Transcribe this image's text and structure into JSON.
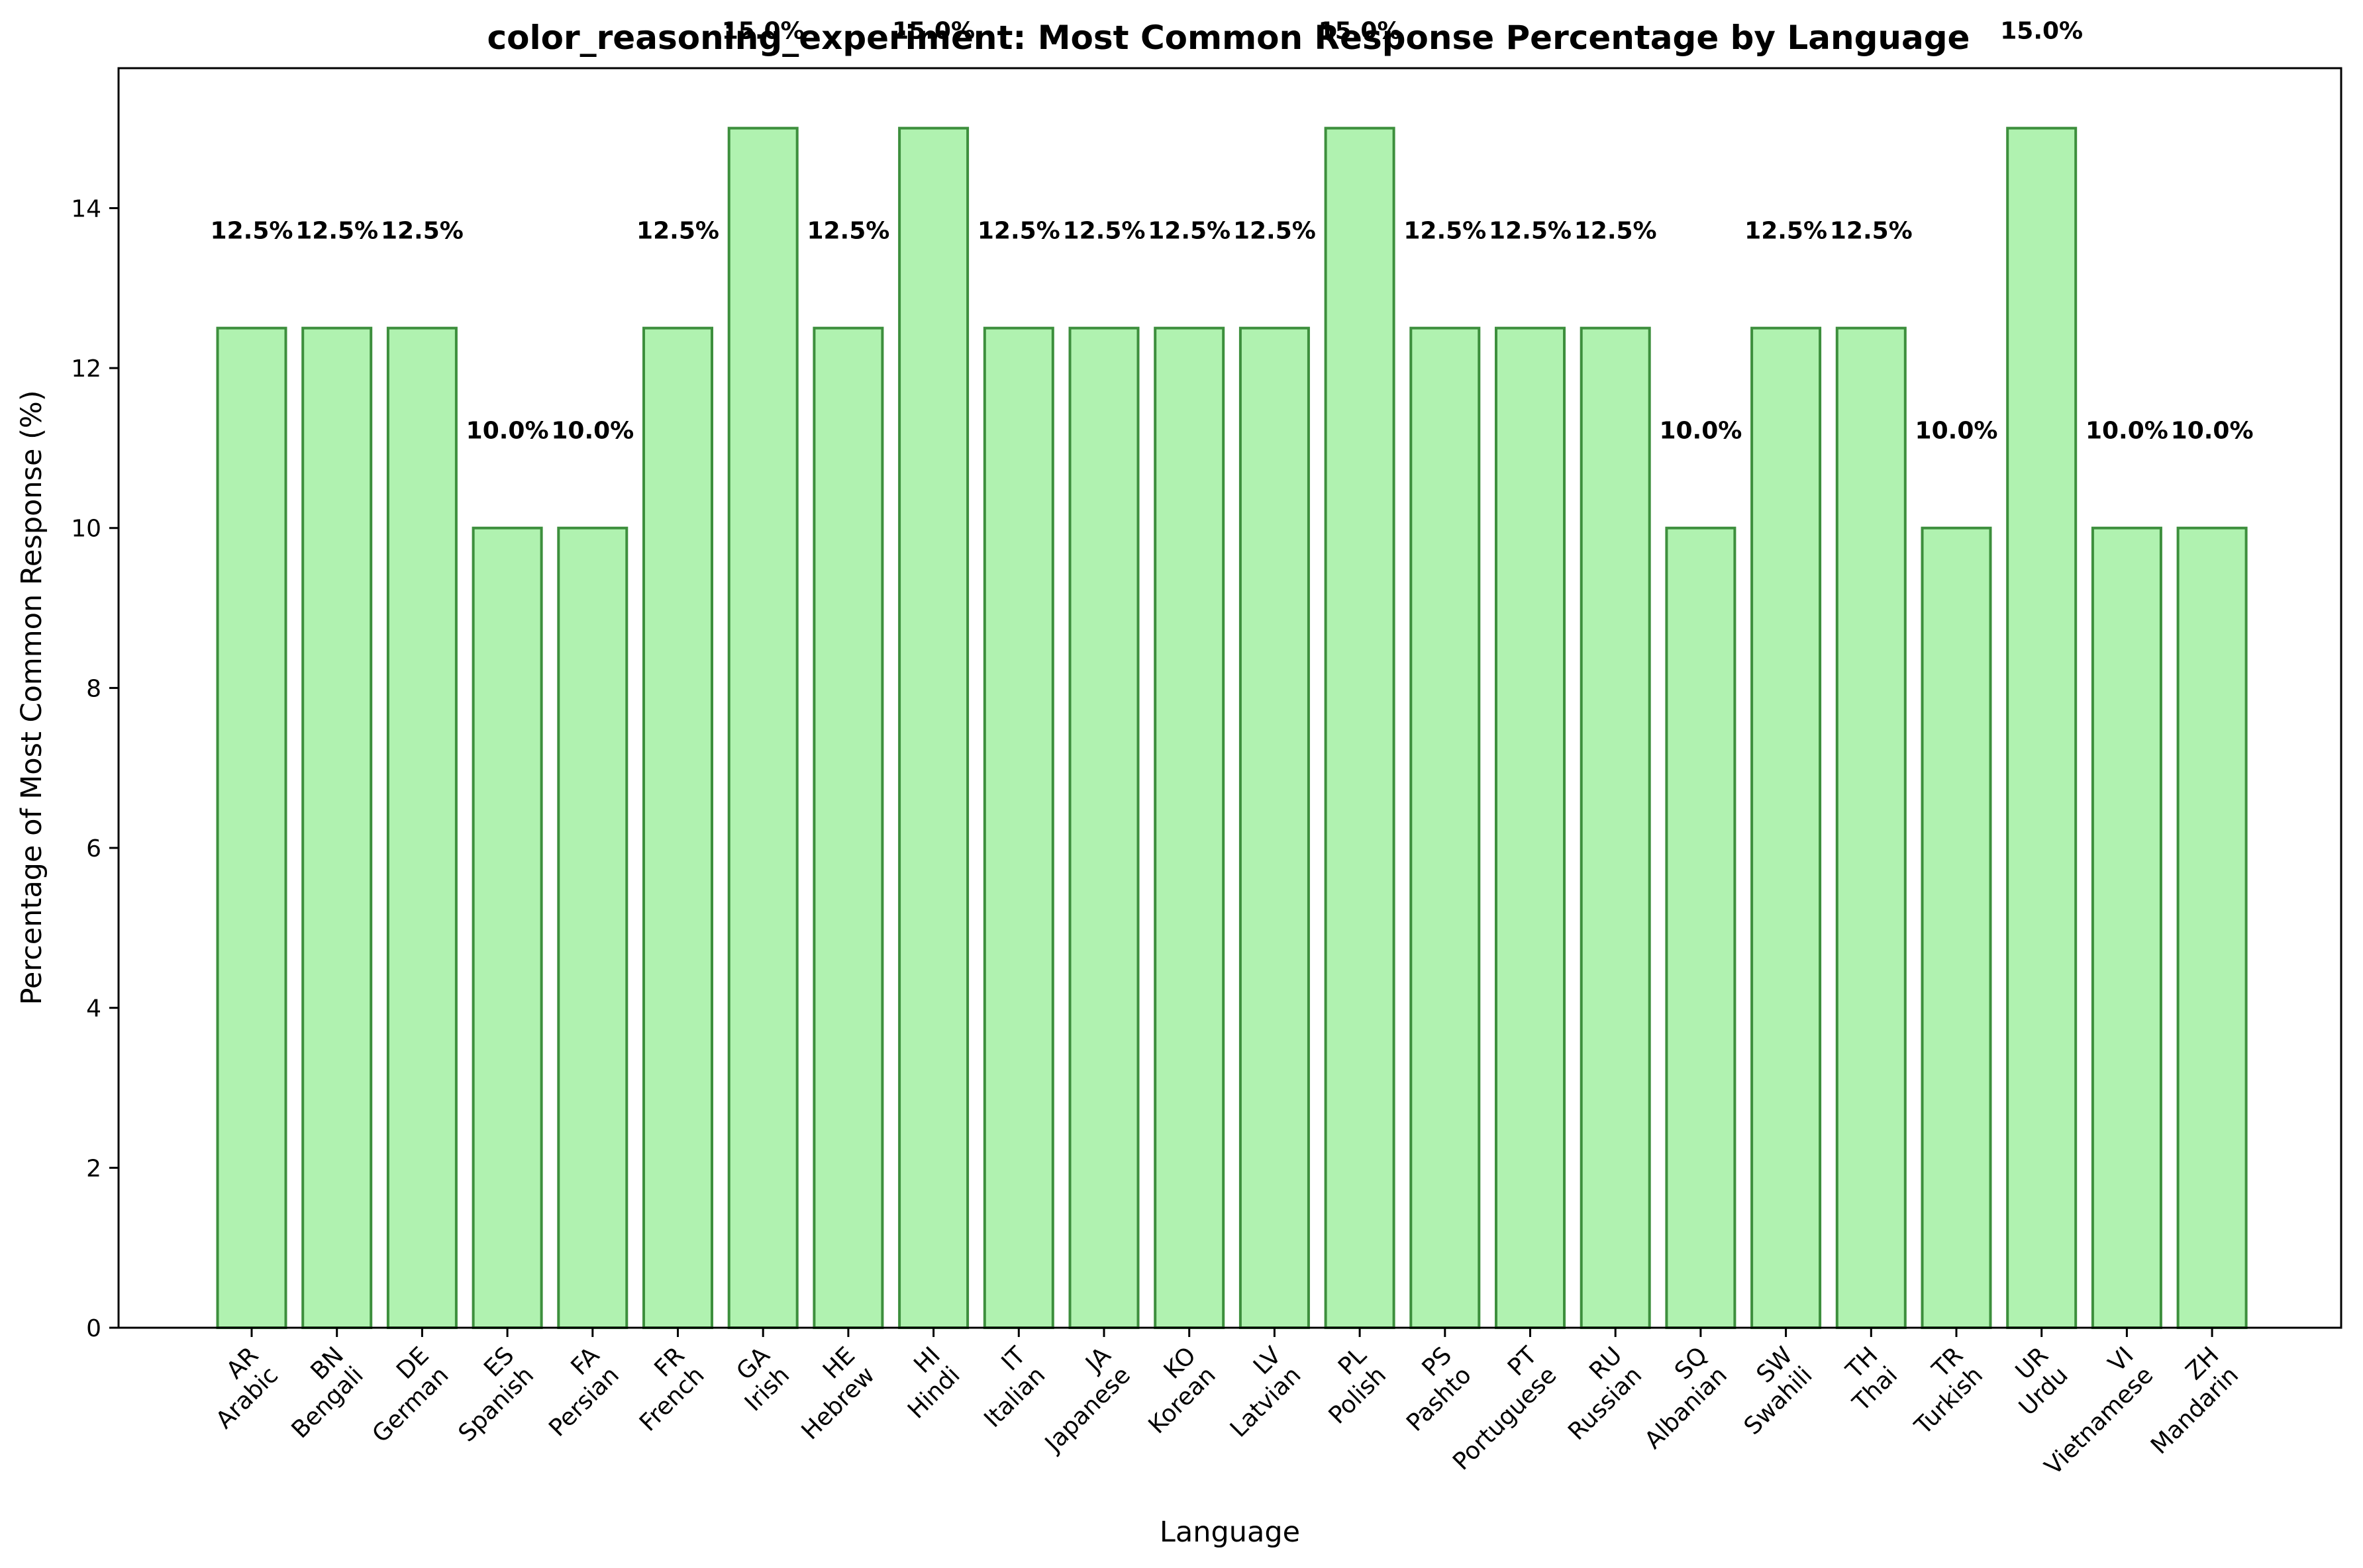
{
  "chart_data": {
    "type": "bar",
    "title": "color_reasoning_experiment: Most Common Response Percentage by Language",
    "xlabel": "Language",
    "ylabel": "Percentage of Most Common Response (%)",
    "ylim": [
      0,
      15.75
    ],
    "yticks": [
      0,
      2,
      4,
      6,
      8,
      10,
      12,
      14
    ],
    "grid": false,
    "categories": [
      {
        "code": "AR",
        "name": "Arabic"
      },
      {
        "code": "BN",
        "name": "Bengali"
      },
      {
        "code": "DE",
        "name": "German"
      },
      {
        "code": "ES",
        "name": "Spanish"
      },
      {
        "code": "FA",
        "name": "Persian"
      },
      {
        "code": "FR",
        "name": "French"
      },
      {
        "code": "GA",
        "name": "Irish"
      },
      {
        "code": "HE",
        "name": "Hebrew"
      },
      {
        "code": "HI",
        "name": "Hindi"
      },
      {
        "code": "IT",
        "name": "Italian"
      },
      {
        "code": "JA",
        "name": "Japanese"
      },
      {
        "code": "KO",
        "name": "Korean"
      },
      {
        "code": "LV",
        "name": "Latvian"
      },
      {
        "code": "PL",
        "name": "Polish"
      },
      {
        "code": "PS",
        "name": "Pashto"
      },
      {
        "code": "PT",
        "name": "Portuguese"
      },
      {
        "code": "RU",
        "name": "Russian"
      },
      {
        "code": "SQ",
        "name": "Albanian"
      },
      {
        "code": "SW",
        "name": "Swahili"
      },
      {
        "code": "TH",
        "name": "Thai"
      },
      {
        "code": "TR",
        "name": "Turkish"
      },
      {
        "code": "UR",
        "name": "Urdu"
      },
      {
        "code": "VI",
        "name": "Vietnamese"
      },
      {
        "code": "ZH",
        "name": "Mandarin"
      }
    ],
    "values": [
      12.5,
      12.5,
      12.5,
      10.0,
      10.0,
      12.5,
      15.0,
      12.5,
      15.0,
      12.5,
      12.5,
      12.5,
      12.5,
      15.0,
      12.5,
      12.5,
      12.5,
      10.0,
      12.5,
      12.5,
      10.0,
      15.0,
      10.0,
      10.0
    ],
    "data_labels": [
      "12.5%",
      "12.5%",
      "12.5%",
      "10.0%",
      "10.0%",
      "12.5%",
      "15.0%",
      "12.5%",
      "15.0%",
      "12.5%",
      "12.5%",
      "12.5%",
      "12.5%",
      "15.0%",
      "12.5%",
      "12.5%",
      "12.5%",
      "10.0%",
      "12.5%",
      "12.5%",
      "10.0%",
      "15.0%",
      "10.0%",
      "10.0%"
    ],
    "bar_color": "#b0f2b0",
    "bar_edge_color": "#3d8f3d"
  }
}
